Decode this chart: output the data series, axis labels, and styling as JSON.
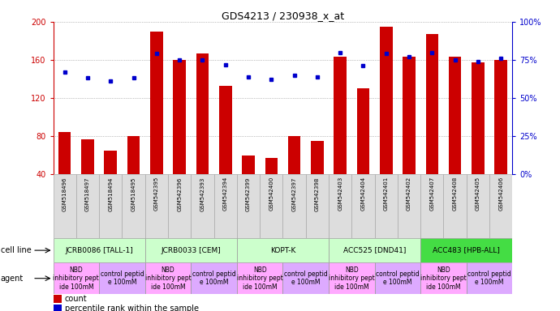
{
  "title": "GDS4213 / 230938_x_at",
  "samples": [
    "GSM518496",
    "GSM518497",
    "GSM518494",
    "GSM518495",
    "GSM542395",
    "GSM542396",
    "GSM542393",
    "GSM542394",
    "GSM542399",
    "GSM542400",
    "GSM542397",
    "GSM542398",
    "GSM542403",
    "GSM542404",
    "GSM542401",
    "GSM542402",
    "GSM542407",
    "GSM542408",
    "GSM542405",
    "GSM542406"
  ],
  "counts": [
    84,
    77,
    65,
    80,
    190,
    160,
    167,
    133,
    60,
    57,
    80,
    75,
    163,
    130,
    195,
    163,
    187,
    163,
    157,
    160
  ],
  "percentiles": [
    67,
    63,
    61,
    63,
    79,
    75,
    75,
    72,
    64,
    62,
    65,
    64,
    80,
    71,
    79,
    77,
    80,
    75,
    74,
    76
  ],
  "bar_color": "#cc0000",
  "dot_color": "#0000cc",
  "ylim_left": [
    40,
    200
  ],
  "ylim_right": [
    0,
    100
  ],
  "yticks_left": [
    40,
    80,
    120,
    160,
    200
  ],
  "yticks_right": [
    0,
    25,
    50,
    75,
    100
  ],
  "cell_lines": [
    {
      "label": "JCRB0086 [TALL-1]",
      "start": 0,
      "end": 4,
      "color": "#ccffcc"
    },
    {
      "label": "JCRB0033 [CEM]",
      "start": 4,
      "end": 8,
      "color": "#ccffcc"
    },
    {
      "label": "KOPT-K",
      "start": 8,
      "end": 12,
      "color": "#ccffcc"
    },
    {
      "label": "ACC525 [DND41]",
      "start": 12,
      "end": 16,
      "color": "#ccffcc"
    },
    {
      "label": "ACC483 [HPB-ALL]",
      "start": 16,
      "end": 20,
      "color": "#44dd44"
    }
  ],
  "agents": [
    {
      "label": "NBD\ninhibitory pept\nide 100mM",
      "start": 0,
      "end": 2,
      "color": "#ffaaff"
    },
    {
      "label": "control peptid\ne 100mM",
      "start": 2,
      "end": 4,
      "color": "#ddaaff"
    },
    {
      "label": "NBD\ninhibitory pept\nide 100mM",
      "start": 4,
      "end": 6,
      "color": "#ffaaff"
    },
    {
      "label": "control peptid\ne 100mM",
      "start": 6,
      "end": 8,
      "color": "#ddaaff"
    },
    {
      "label": "NBD\ninhibitory pept\nide 100mM",
      "start": 8,
      "end": 10,
      "color": "#ffaaff"
    },
    {
      "label": "control peptid\ne 100mM",
      "start": 10,
      "end": 12,
      "color": "#ddaaff"
    },
    {
      "label": "NBD\ninhibitory pept\nide 100mM",
      "start": 12,
      "end": 14,
      "color": "#ffaaff"
    },
    {
      "label": "control peptid\ne 100mM",
      "start": 14,
      "end": 16,
      "color": "#ddaaff"
    },
    {
      "label": "NBD\ninhibitory pept\nide 100mM",
      "start": 16,
      "end": 18,
      "color": "#ffaaff"
    },
    {
      "label": "control peptid\ne 100mM",
      "start": 18,
      "end": 20,
      "color": "#ddaaff"
    }
  ],
  "legend_count_color": "#cc0000",
  "legend_percentile_color": "#0000cc",
  "bg_color": "#ffffff",
  "tick_color_left": "#cc0000",
  "tick_color_right": "#0000cc",
  "grid_color": "#888888",
  "sample_box_color": "#dddddd",
  "sample_box_edge": "#aaaaaa",
  "row_label_fontsize": 7,
  "cell_line_fontsize": 6.5,
  "agent_fontsize": 5.5,
  "sample_fontsize": 5,
  "bar_width": 0.55
}
